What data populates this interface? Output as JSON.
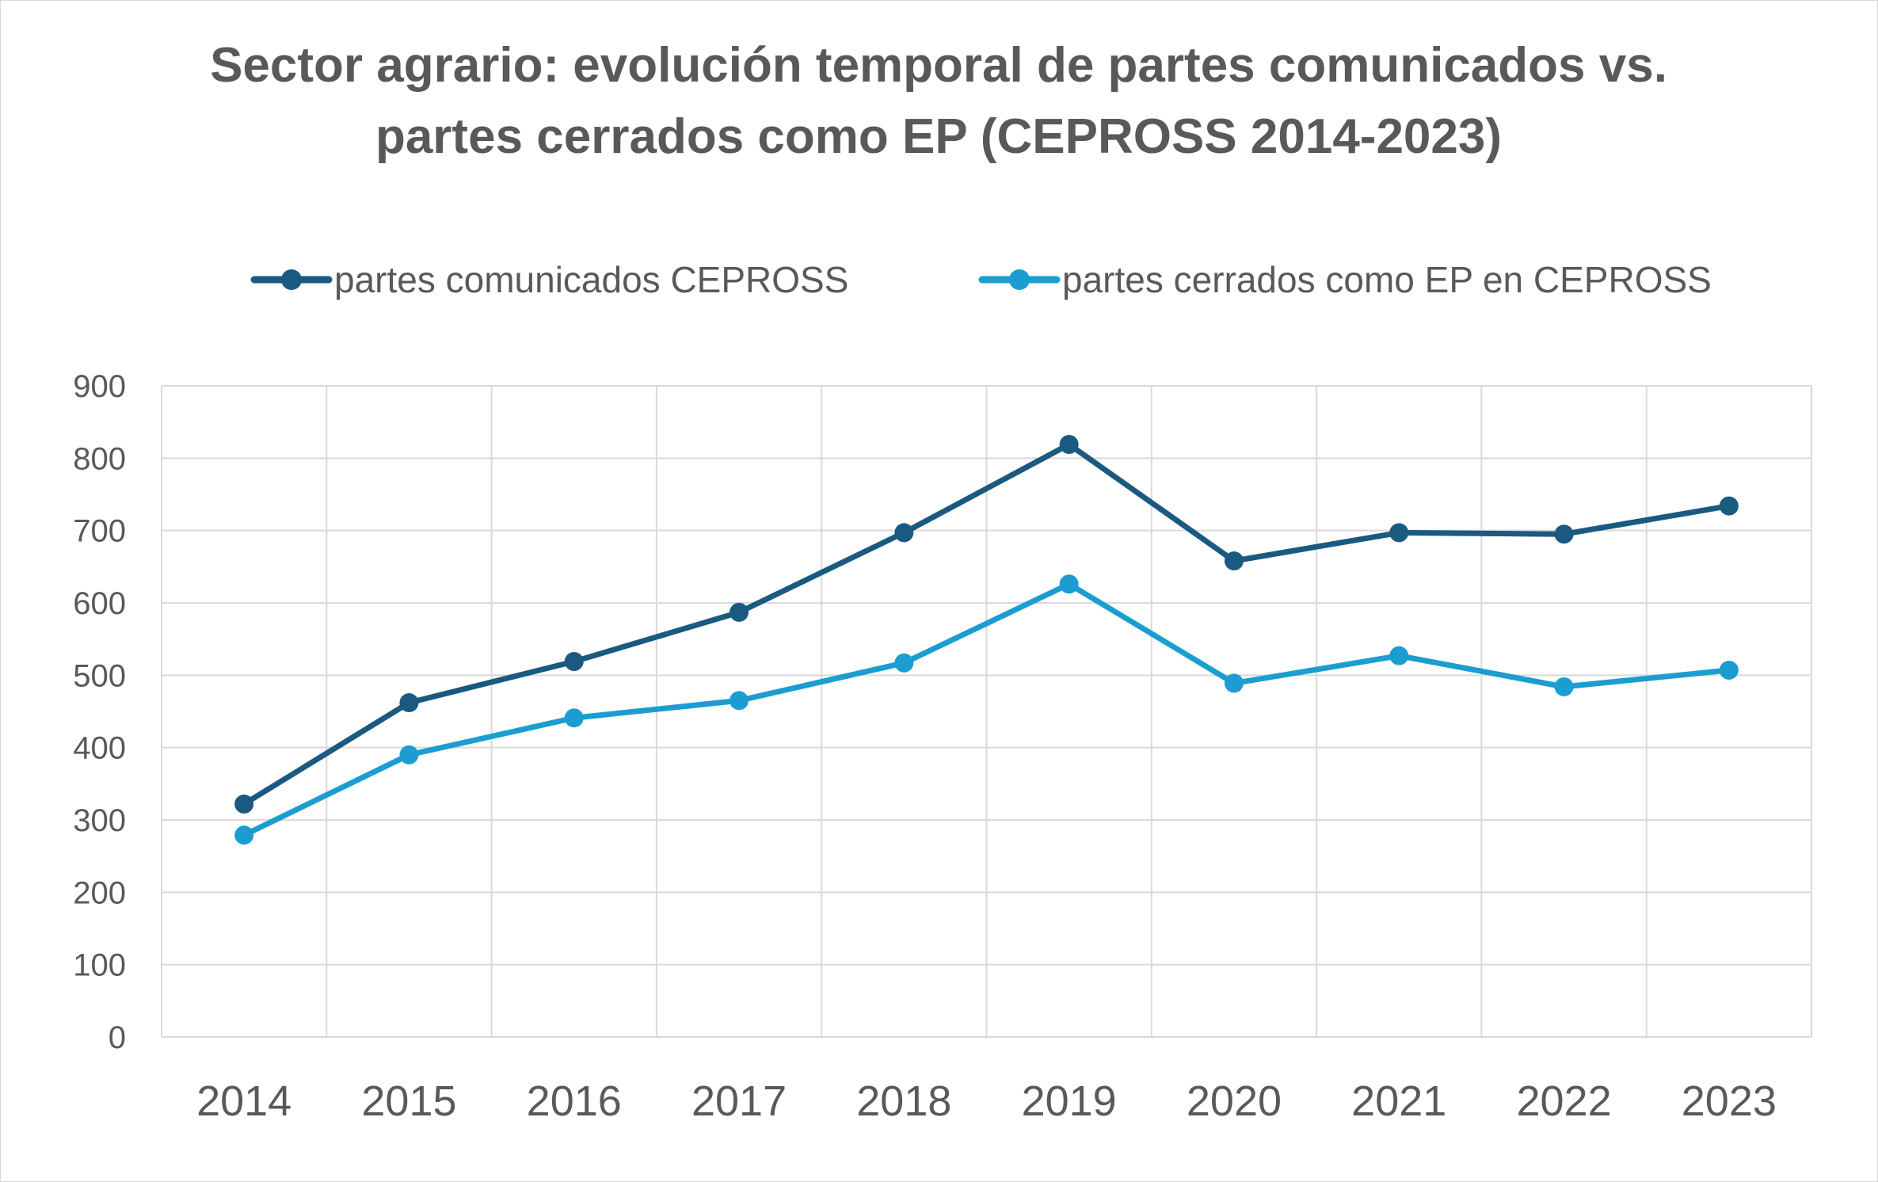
{
  "colors": {
    "series_1": "#1b5a80",
    "series_2": "#1c9dd1",
    "grid": "#d9d9d9",
    "text": "#595959"
  },
  "chart_data": {
    "type": "line",
    "title_lines": [
      "Sector agrario: evolución temporal de partes comunicados vs.",
      "partes cerrados como EP  (CEPROSS 2014-2023)"
    ],
    "x": [
      "2014",
      "2015",
      "2016",
      "2017",
      "2018",
      "2019",
      "2020",
      "2021",
      "2022",
      "2023"
    ],
    "series": [
      {
        "name": "partes comunicados CEPROSS",
        "values": [
          322,
          462,
          519,
          587,
          697,
          819,
          658,
          697,
          695,
          734
        ]
      },
      {
        "name": "partes cerrados como EP en CEPROSS",
        "values": [
          279,
          390,
          441,
          465,
          517,
          626,
          489,
          527,
          484,
          507
        ]
      }
    ],
    "ylim": [
      0,
      900
    ],
    "yticks": [
      "0",
      "100",
      "200",
      "300",
      "400",
      "500",
      "600",
      "700",
      "800",
      "900"
    ],
    "grid": true,
    "legend_position": "top"
  }
}
